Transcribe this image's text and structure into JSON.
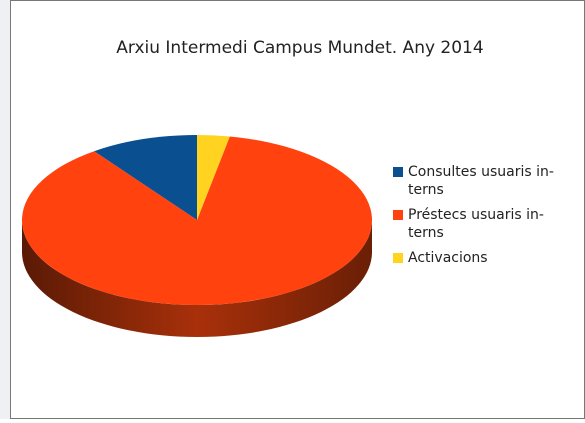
{
  "chart_data": {
    "type": "pie",
    "title": "Arxiu Intermedi Campus Mundet. Any 2014",
    "categories": [
      [
        "Consultes usuaris in-",
        "terns"
      ],
      [
        "Préstecs usuaris in-",
        "terns"
      ],
      [
        "Activacions"
      ]
    ],
    "values": [
      10,
      87,
      3
    ],
    "colors": [
      "#0a4f8f",
      "#ff420e",
      "#ffd320"
    ],
    "legend": "right"
  }
}
